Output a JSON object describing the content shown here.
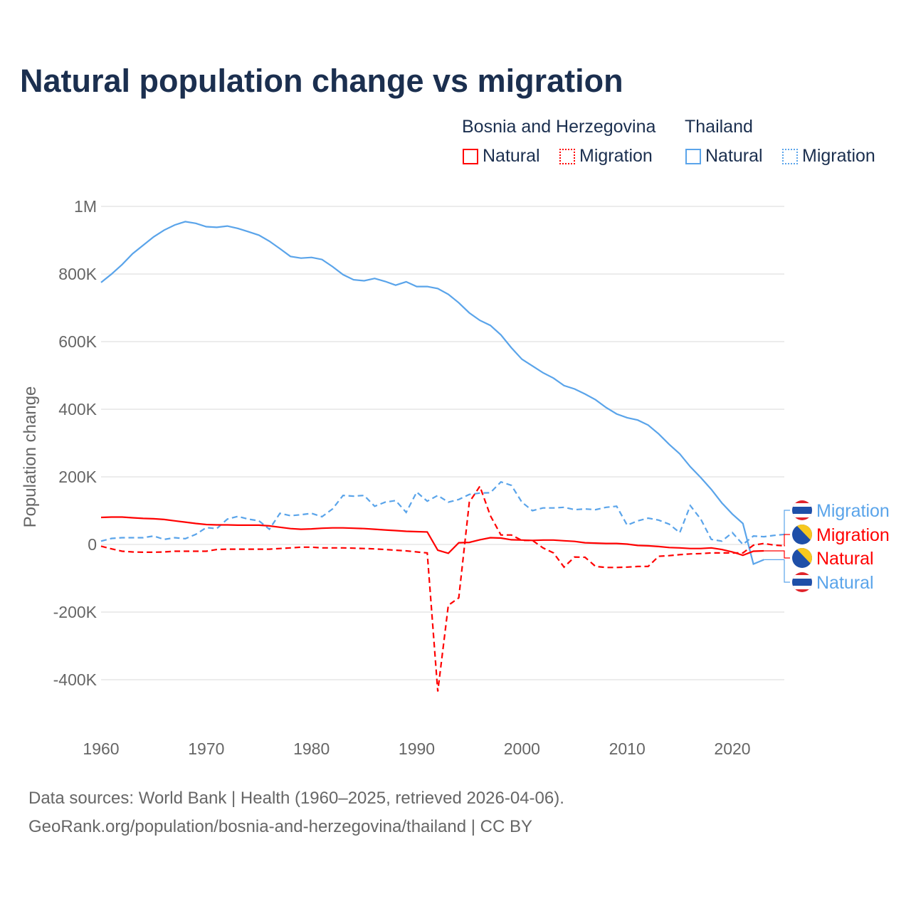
{
  "chart_data": {
    "type": "line",
    "title": "Natural population change vs migration",
    "ylabel": "Population change",
    "xlabel": "",
    "xlim": [
      1960,
      2025
    ],
    "ylim": [
      -500000,
      1000000
    ],
    "x_ticks": [
      "1960",
      "1970",
      "1980",
      "1990",
      "2000",
      "2010",
      "2020"
    ],
    "y_ticks": [
      {
        "v": 1000000,
        "label": "1M"
      },
      {
        "v": 800000,
        "label": "800K"
      },
      {
        "v": 600000,
        "label": "600K"
      },
      {
        "v": 400000,
        "label": "400K"
      },
      {
        "v": 200000,
        "label": "200K"
      },
      {
        "v": 0,
        "label": "0"
      },
      {
        "v": -200000,
        "label": "-200K"
      },
      {
        "v": -400000,
        "label": "-400K"
      }
    ],
    "grid": true,
    "legend": {
      "placement": "top-right",
      "groups": [
        {
          "country": "Bosnia and Herzegovina",
          "items": [
            "Natural",
            "Migration"
          ]
        },
        {
          "country": "Thailand",
          "items": [
            "Natural",
            "Migration"
          ]
        }
      ]
    },
    "series": [
      {
        "name": "Thailand Natural",
        "label": "Natural",
        "color": "#5aa4ea",
        "dash": false,
        "start": 1960,
        "values": [
          775,
          800,
          828,
          860,
          885,
          910,
          930,
          945,
          955,
          950,
          940,
          938,
          942,
          935,
          925,
          915,
          897,
          875,
          852,
          847,
          849,
          843,
          822,
          798,
          783,
          780,
          787,
          778,
          767,
          777,
          763,
          763,
          757,
          740,
          715,
          685,
          663,
          648,
          620,
          582,
          548,
          528,
          508,
          492,
          470,
          460,
          445,
          428,
          405,
          386,
          375,
          368,
          353,
          327,
          296,
          268,
          230,
          198,
          163,
          123,
          90,
          62,
          -58,
          -45
        ]
      },
      {
        "name": "Thailand Migration",
        "label": "Migration",
        "color": "#5aa4ea",
        "dash": true,
        "start": 1960,
        "values": [
          10,
          18,
          20,
          20,
          20,
          25,
          15,
          20,
          17,
          30,
          50,
          47,
          75,
          83,
          75,
          70,
          45,
          92,
          85,
          88,
          92,
          82,
          105,
          145,
          143,
          145,
          113,
          125,
          130,
          95,
          155,
          128,
          145,
          125,
          133,
          148,
          152,
          153,
          185,
          175,
          125,
          100,
          108,
          108,
          110,
          103,
          105,
          103,
          110,
          113,
          57,
          70,
          78,
          72,
          60,
          35,
          115,
          75,
          15,
          10,
          35,
          0,
          25,
          23,
          27,
          30
        ]
      },
      {
        "name": "Bosnia and Herzegovina Natural",
        "label": "Natural",
        "color": "#ff0000",
        "dash": false,
        "start": 1960,
        "values": [
          80,
          81,
          81,
          79,
          77,
          76,
          74,
          70,
          66,
          62,
          59,
          58,
          58,
          57,
          57,
          57,
          55,
          51,
          47,
          45,
          46,
          48,
          49,
          49,
          48,
          47,
          45,
          43,
          41,
          39,
          38,
          37,
          -17,
          -26,
          5,
          6,
          14,
          20,
          19,
          14,
          13,
          12,
          13,
          13,
          11,
          9,
          5,
          4,
          3,
          3,
          1,
          -3,
          -4,
          -6,
          -9,
          -10,
          -12,
          -12,
          -10,
          -15,
          -22,
          -32,
          -20,
          -19
        ]
      },
      {
        "name": "Bosnia and Herzegovina Migration",
        "label": "Migration",
        "color": "#ff0000",
        "dash": true,
        "start": 1960,
        "values": [
          -5,
          -13,
          -20,
          -22,
          -23,
          -23,
          -22,
          -20,
          -20,
          -20,
          -20,
          -15,
          -14,
          -14,
          -14,
          -14,
          -14,
          -12,
          -10,
          -8,
          -8,
          -10,
          -10,
          -10,
          -11,
          -12,
          -13,
          -15,
          -17,
          -19,
          -22,
          -25,
          -435,
          -180,
          -158,
          125,
          172,
          85,
          28,
          28,
          12,
          12,
          -10,
          -25,
          -67,
          -37,
          -38,
          -65,
          -68,
          -68,
          -67,
          -65,
          -65,
          -35,
          -33,
          -30,
          -28,
          -27,
          -25,
          -25,
          -25,
          -25,
          -2,
          3,
          -2,
          -4
        ]
      }
    ],
    "value_unit": "thousands",
    "end_labels": [
      {
        "text": "Migration",
        "flag": "thailand",
        "color": "#5aa4ea"
      },
      {
        "text": "Migration",
        "flag": "bosnia",
        "color": "#ff0000"
      },
      {
        "text": "Natural",
        "flag": "bosnia",
        "color": "#ff0000"
      },
      {
        "text": "Natural",
        "flag": "thailand",
        "color": "#5aa4ea"
      }
    ]
  },
  "legend": {
    "bih": "Bosnia and Herzegovina",
    "tha": "Thailand",
    "natural": "Natural",
    "migration": "Migration"
  },
  "footer": {
    "line1": "Data sources: World Bank | Health (1960–2025, retrieved 2026-04-06).",
    "line2": "GeoRank.org/population/bosnia-and-herzegovina/thailand | CC BY"
  }
}
